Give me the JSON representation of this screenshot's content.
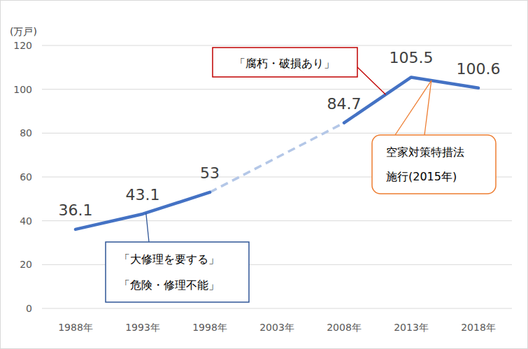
{
  "chart_data": {
    "type": "line",
    "y_label": "(万戸)",
    "categories": [
      "1988年",
      "1993年",
      "1998年",
      "2003年",
      "2008年",
      "2013年",
      "2018年"
    ],
    "series": [
      {
        "color": "#4472c4",
        "values": [
          36.1,
          43.1,
          53,
          null,
          84.7,
          105.5,
          100.6
        ]
      }
    ],
    "ylim": [
      0,
      120
    ],
    "yticks": [
      0,
      20,
      40,
      60,
      80,
      100,
      120
    ],
    "grid": true,
    "data_labels": true,
    "annotations": [
      {
        "lines": [
          "「大修理を要する」",
          "「危険・修理不能」"
        ]
      },
      {
        "lines": [
          "「腐朽・破損あり」"
        ]
      },
      {
        "lines": [
          "空家対策特措法",
          "施行(2015年)"
        ]
      }
    ]
  }
}
